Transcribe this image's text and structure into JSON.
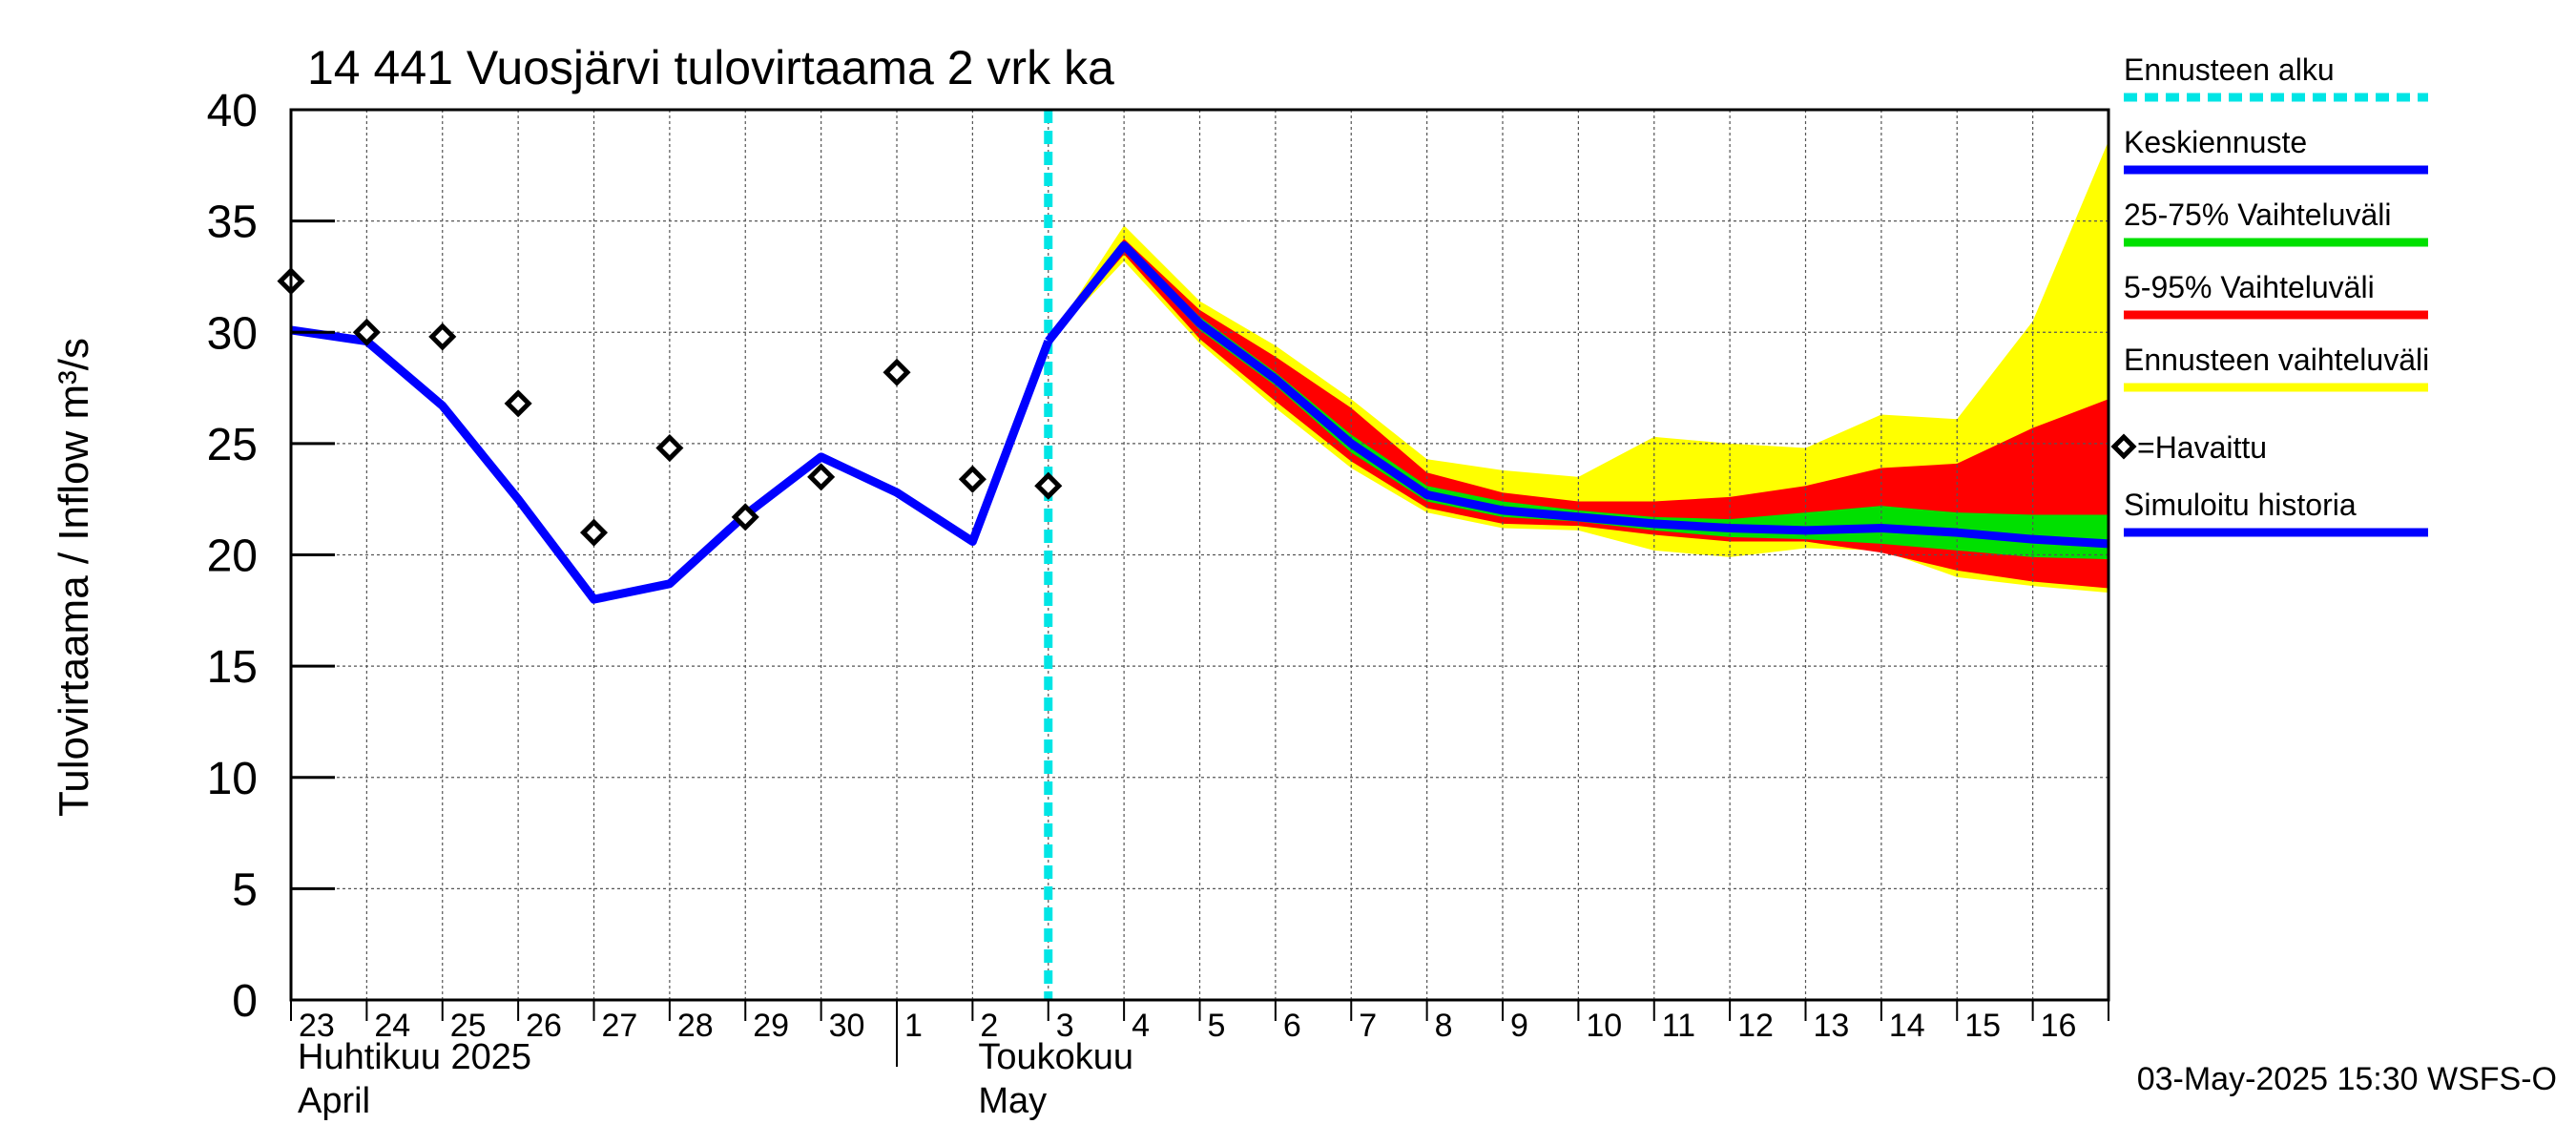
{
  "chart_data": {
    "type": "line",
    "title": "14 441 Vuosjärvi tulovirtaama 2 vrk ka",
    "ylabel": "Tulovirtaama / Inflow    m³/s",
    "ylim": [
      0,
      40
    ],
    "y_ticks": [
      "0",
      "5",
      "10",
      "15",
      "20",
      "25",
      "30",
      "35",
      "40"
    ],
    "x_tick_labels": [
      "23",
      "24",
      "25",
      "26",
      "27",
      "28",
      "29",
      "30",
      "1",
      "2",
      "3",
      "4",
      "5",
      "6",
      "7",
      "8",
      "9",
      "10",
      "11",
      "12",
      "13",
      "14",
      "15",
      "16"
    ],
    "month_labels": [
      {
        "line1": "Huhtikuu  2025",
        "line2": "April"
      },
      {
        "line1": "Toukokuu",
        "line2": "May"
      }
    ],
    "grid": true,
    "legend_position": "right",
    "forecast_start_day": 10,
    "legend": [
      {
        "label": "Ennusteen alku",
        "color": "#00e5e5",
        "style": "dashed"
      },
      {
        "label": "Keskiennuste",
        "color": "#0000ff",
        "style": "line"
      },
      {
        "label": "25-75% Vaihteluväli",
        "color": "#00e000",
        "style": "line"
      },
      {
        "label": "5-95% Vaihteluväli",
        "color": "#ff0000",
        "style": "line"
      },
      {
        "label": "Ennusteen vaihteluväli",
        "color": "#ffff00",
        "style": "line"
      },
      {
        "label": "=Havaittu",
        "color": "#000000",
        "style": "diamond"
      },
      {
        "label": "Simuloitu historia",
        "color": "#0000ff",
        "style": "line"
      }
    ],
    "series": [
      {
        "name": "Simuloitu historia",
        "x": [
          0,
          1,
          2,
          3,
          4,
          5,
          6,
          7,
          8,
          9,
          10
        ],
        "values": [
          30.1,
          29.6,
          26.7,
          22.5,
          18.0,
          18.7,
          21.8,
          24.4,
          22.8,
          20.6,
          29.6
        ]
      },
      {
        "name": "=Havaittu",
        "x": [
          0,
          1,
          2,
          3,
          4,
          5,
          6,
          7,
          8,
          9,
          10
        ],
        "values": [
          32.3,
          30.0,
          29.8,
          26.8,
          21.0,
          24.8,
          21.7,
          23.5,
          28.2,
          23.4,
          23.1
        ]
      },
      {
        "name": "Keskiennuste",
        "x": [
          10,
          11,
          12,
          13,
          14,
          15,
          16,
          17,
          18,
          19,
          20,
          21,
          22,
          23,
          24
        ],
        "values": [
          29.6,
          33.9,
          30.4,
          27.9,
          25.0,
          22.7,
          22.0,
          21.7,
          21.4,
          21.2,
          21.1,
          21.2,
          21.0,
          20.7,
          20.5
        ]
      }
    ],
    "bands": [
      {
        "name": "Ennusteen vaihteluväli",
        "x": [
          10,
          11,
          12,
          13,
          14,
          15,
          16,
          17,
          18,
          19,
          20,
          21,
          22,
          23,
          24
        ],
        "upper": [
          29.6,
          34.8,
          31.4,
          29.4,
          27.0,
          24.3,
          23.8,
          23.5,
          25.3,
          25.0,
          24.8,
          26.3,
          26.1,
          30.5,
          38.6
        ],
        "lower": [
          29.6,
          33.2,
          29.5,
          26.6,
          23.9,
          21.9,
          21.2,
          21.1,
          20.2,
          19.9,
          20.3,
          20.2,
          19.0,
          18.6,
          18.3
        ]
      },
      {
        "name": "5-95% Vaihteluväli",
        "x": [
          10,
          11,
          12,
          13,
          14,
          15,
          16,
          17,
          18,
          19,
          20,
          21,
          22,
          23,
          24
        ],
        "upper": [
          29.6,
          34.2,
          31.0,
          28.9,
          26.6,
          23.7,
          22.8,
          22.4,
          22.4,
          22.6,
          23.1,
          23.9,
          24.1,
          25.7,
          27.0
        ],
        "lower": [
          29.6,
          33.5,
          29.7,
          26.9,
          24.2,
          22.1,
          21.4,
          21.3,
          20.9,
          20.6,
          20.6,
          20.1,
          19.3,
          18.8,
          18.5
        ]
      },
      {
        "name": "25-75% Vaihteluväli",
        "x": [
          10,
          11,
          12,
          13,
          14,
          15,
          16,
          17,
          18,
          19,
          20,
          21,
          22,
          23,
          24
        ],
        "upper": [
          29.6,
          34.0,
          30.7,
          28.2,
          25.4,
          23.1,
          22.4,
          22.0,
          21.7,
          21.6,
          21.9,
          22.2,
          21.9,
          21.8,
          21.8
        ],
        "lower": [
          29.6,
          33.7,
          30.1,
          27.6,
          24.6,
          22.4,
          21.7,
          21.5,
          21.1,
          20.8,
          20.7,
          20.5,
          20.2,
          19.9,
          19.8
        ]
      }
    ]
  },
  "footer": {
    "timestamp": "03-May-2025 15:30 WSFS-O"
  }
}
